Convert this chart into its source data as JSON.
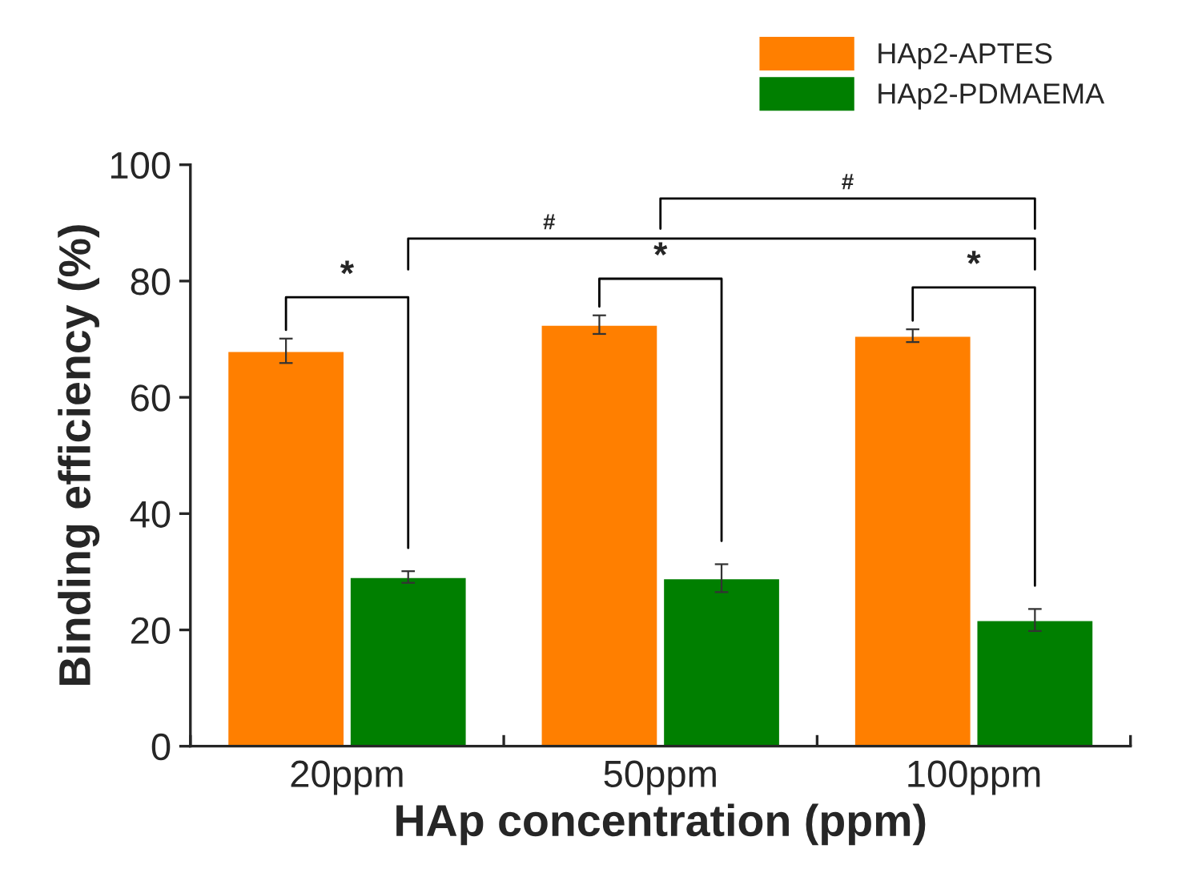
{
  "chart_data": {
    "type": "bar",
    "xlabel": "HAp concentration (ppm)",
    "ylabel": "Binding efficiency (%)",
    "categories": [
      "20ppm",
      "50ppm",
      "100ppm"
    ],
    "series": [
      {
        "name": "HAp2-APTES",
        "color": "#ff7f00",
        "values": [
          68.0,
          72.5,
          70.6
        ],
        "errors": [
          2.1,
          1.6,
          1.1
        ]
      },
      {
        "name": "HAp2-PDMAEMA",
        "color": "#007f00",
        "values": [
          29.1,
          28.9,
          21.7
        ],
        "errors": [
          1.0,
          2.4,
          1.9
        ]
      }
    ],
    "ylim": [
      0,
      100
    ],
    "yticks": [
      0,
      20,
      40,
      60,
      80,
      100
    ],
    "grid": false,
    "legend": "top right",
    "annotations": [
      "*",
      "*",
      "*",
      "#",
      "#"
    ]
  }
}
